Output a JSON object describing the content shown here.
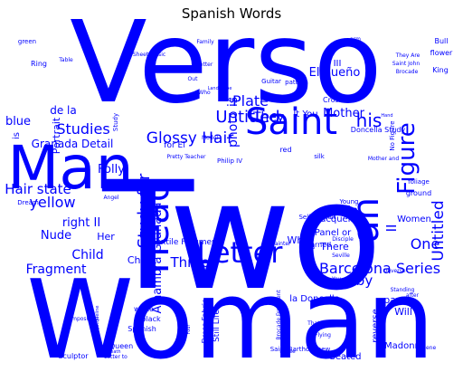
{
  "chart_data": {
    "type": "wordcloud",
    "title": "Spanish Words",
    "color": "#0000ff",
    "background": "#ffffff",
    "words": [
      {
        "text": "Two",
        "weight": 1.0
      },
      {
        "text": "Woman",
        "weight": 0.93
      },
      {
        "text": "Verso",
        "weight": 0.9
      },
      {
        "text": "Man",
        "weight": 0.55
      },
      {
        "text": "Saint",
        "weight": 0.42
      },
      {
        "text": "Head",
        "weight": 0.35
      },
      {
        "text": "Letter",
        "weight": 0.34
      },
      {
        "text": "an",
        "weight": 0.3
      },
      {
        "text": "Barcelona Series",
        "weight": 0.18
      },
      {
        "text": "Figure",
        "weight": 0.2
      },
      {
        "text": "Untitled",
        "weight": 0.16
      },
      {
        "text": "Glossy Hair",
        "weight": 0.16
      },
      {
        "text": "Untitled",
        "weight": 0.16
      },
      {
        "text": "Study for",
        "weight": 0.16
      },
      {
        "text": "his",
        "weight": 0.17
      },
      {
        "text": "Mother",
        "weight": 0.12
      },
      {
        "text": "Plate",
        "weight": 0.14
      },
      {
        "text": "Studies",
        "weight": 0.13
      },
      {
        "text": "Three",
        "weight": 0.13
      },
      {
        "text": "Alhambra Granada",
        "weight": 0.12
      },
      {
        "text": "Hair state",
        "weight": 0.12
      },
      {
        "text": "yellow",
        "weight": 0.12
      },
      {
        "text": "One",
        "weight": 0.12
      },
      {
        "text": "Fragment",
        "weight": 0.11
      },
      {
        "text": "Nude",
        "weight": 0.11
      },
      {
        "text": "Child",
        "weight": 0.11
      },
      {
        "text": "They",
        "weight": 0.11
      },
      {
        "text": "Spain",
        "weight": 0.1
      },
      {
        "text": "Folly",
        "weight": 0.1
      },
      {
        "text": "right II",
        "weight": 0.1
      },
      {
        "text": "by",
        "weight": 0.13
      },
      {
        "text": "II",
        "weight": 0.13
      },
      {
        "text": "blue",
        "weight": 0.1
      },
      {
        "text": "photo is",
        "weight": 0.1
      },
      {
        "text": "Granada Detail",
        "weight": 0.09
      },
      {
        "text": "El Sueño",
        "weight": 0.09
      },
      {
        "text": "de la",
        "weight": 0.09
      },
      {
        "text": "What",
        "weight": 0.08
      },
      {
        "text": "Christ",
        "weight": 0.08
      },
      {
        "text": "Her",
        "weight": 0.08
      },
      {
        "text": "Portrait",
        "weight": 0.08
      },
      {
        "text": "Jacqueline",
        "weight": 0.07
      },
      {
        "text": "Panel or",
        "weight": 0.07
      },
      {
        "text": "Women",
        "weight": 0.06
      },
      {
        "text": "There",
        "weight": 0.07
      },
      {
        "text": "page",
        "weight": 0.07
      },
      {
        "text": "Will",
        "weight": 0.07
      },
      {
        "text": "Madonna",
        "weight": 0.06
      },
      {
        "text": "Seated",
        "weight": 0.06
      },
      {
        "text": "Textile Fragment",
        "weight": 0.06
      },
      {
        "text": "Still Life",
        "weight": 0.06
      },
      {
        "text": "reverse",
        "weight": 0.06
      },
      {
        "text": "la Doncella",
        "weight": 0.06
      },
      {
        "text": "for El",
        "weight": 0.06
      },
      {
        "text": "It You",
        "weight": 0.06
      },
      {
        "text": "Dress Fabric",
        "weight": 0.05
      },
      {
        "text": "Doncella Study",
        "weight": 0.05
      },
      {
        "text": "black",
        "weight": 0.05
      },
      {
        "text": "Spanish",
        "weight": 0.05
      },
      {
        "text": "white",
        "weight": 0.05
      },
      {
        "text": "Queen",
        "weight": 0.04
      },
      {
        "text": "Sculptor",
        "weight": 0.04
      },
      {
        "text": "Young",
        "weight": 0.04
      },
      {
        "text": "Cross",
        "weight": 0.04
      },
      {
        "text": "Self Portrait",
        "weight": 0.04
      },
      {
        "text": "Dream",
        "weight": 0.04
      },
      {
        "text": "Ring",
        "weight": 0.04
      },
      {
        "text": "Angel",
        "weight": 0.03
      },
      {
        "text": "Bull",
        "weight": 0.04
      },
      {
        "text": "flower",
        "weight": 0.04
      },
      {
        "text": "King",
        "weight": 0.04
      },
      {
        "text": "III",
        "weight": 0.05
      },
      {
        "text": "Philip IV",
        "weight": 0.04
      },
      {
        "text": "Guitar",
        "weight": 0.04
      },
      {
        "text": "Horse",
        "weight": 0.03
      },
      {
        "text": "Brocade Fragment",
        "weight": 0.03
      },
      {
        "text": "Saint Bartholomew",
        "weight": 0.03
      },
      {
        "text": "Painter",
        "weight": 0.03
      },
      {
        "text": "Saint John",
        "weight": 0.03
      },
      {
        "text": "Landscape",
        "weight": 0.03
      },
      {
        "text": "Sheet Music",
        "weight": 0.03
      },
      {
        "text": "Family",
        "weight": 0.03
      },
      {
        "text": "silk",
        "weight": 0.03
      },
      {
        "text": "pattern",
        "weight": 0.03
      },
      {
        "text": "ground",
        "weight": 0.04
      },
      {
        "text": "foliage",
        "weight": 0.03
      },
      {
        "text": "green",
        "weight": 0.03
      },
      {
        "text": "Study",
        "weight": 0.04
      },
      {
        "text": "Table",
        "weight": 0.03
      },
      {
        "text": "Model",
        "weight": 0.03
      },
      {
        "text": "Piece",
        "weight": 0.03
      },
      {
        "text": "turned",
        "weight": 0.03
      },
      {
        "text": "Seville",
        "weight": 0.03
      },
      {
        "text": "Composition",
        "weight": 0.03
      },
      {
        "text": "Pretty Teacher",
        "weight": 0.03
      },
      {
        "text": "Flying",
        "weight": 0.03
      },
      {
        "text": "God",
        "weight": 0.03
      },
      {
        "text": "Obverse",
        "weight": 0.03
      },
      {
        "text": "Standing",
        "weight": 0.03
      },
      {
        "text": "Seated Jacqueline",
        "weight": 0.03
      },
      {
        "text": "Scene",
        "weight": 0.03
      },
      {
        "text": "That You",
        "weight": 0.03
      },
      {
        "text": "Death",
        "weight": 0.03
      },
      {
        "text": "No Figure",
        "weight": 0.03
      },
      {
        "text": "Disciple",
        "weight": 0.03
      },
      {
        "text": "Four",
        "weight": 0.03
      },
      {
        "text": "red",
        "weight": 0.04
      },
      {
        "text": "after",
        "weight": 0.03
      },
      {
        "text": "is",
        "weight": 0.04
      },
      {
        "text": "Who",
        "weight": 0.03
      },
      {
        "text": "Hand",
        "weight": 0.03
      },
      {
        "text": "Out",
        "weight": 0.03
      },
      {
        "text": "Letter to",
        "weight": 0.03
      },
      {
        "text": "Brocade",
        "weight": 0.03
      },
      {
        "text": "They Are",
        "weight": 0.03
      },
      {
        "text": "arm",
        "weight": 0.03
      },
      {
        "text": "Better",
        "weight": 0.03
      },
      {
        "text": "Mother and",
        "weight": 0.03
      },
      {
        "text": "You",
        "weight": 0.03
      }
    ]
  }
}
